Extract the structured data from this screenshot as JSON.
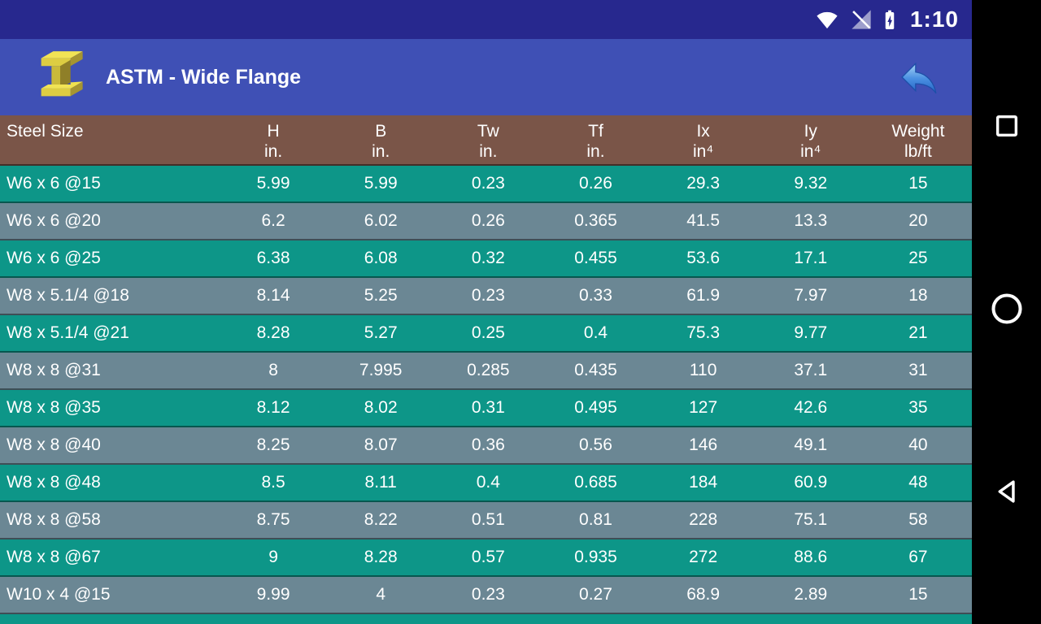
{
  "status_bar": {
    "time": "1:10"
  },
  "app_bar": {
    "title": "ASTM - Wide Flange"
  },
  "table": {
    "columns": [
      {
        "label": "Steel Size",
        "unit": ""
      },
      {
        "label": "H",
        "unit": "in."
      },
      {
        "label": "B",
        "unit": "in."
      },
      {
        "label": "Tw",
        "unit": "in."
      },
      {
        "label": "Tf",
        "unit": "in."
      },
      {
        "label": "Ix",
        "unit": "in⁴"
      },
      {
        "label": "Iy",
        "unit": "in⁴"
      },
      {
        "label": "Weight",
        "unit": "lb/ft"
      }
    ],
    "rows": [
      [
        "W6 x 6 @15",
        "5.99",
        "5.99",
        "0.23",
        "0.26",
        "29.3",
        "9.32",
        "15"
      ],
      [
        "W6 x 6 @20",
        "6.2",
        "6.02",
        "0.26",
        "0.365",
        "41.5",
        "13.3",
        "20"
      ],
      [
        "W6 x 6 @25",
        "6.38",
        "6.08",
        "0.32",
        "0.455",
        "53.6",
        "17.1",
        "25"
      ],
      [
        "W8 x 5.1/4 @18",
        "8.14",
        "5.25",
        "0.23",
        "0.33",
        "61.9",
        "7.97",
        "18"
      ],
      [
        "W8 x 5.1/4 @21",
        "8.28",
        "5.27",
        "0.25",
        "0.4",
        "75.3",
        "9.77",
        "21"
      ],
      [
        "W8 x 8 @31",
        "8",
        "7.995",
        "0.285",
        "0.435",
        "110",
        "37.1",
        "31"
      ],
      [
        "W8 x 8 @35",
        "8.12",
        "8.02",
        "0.31",
        "0.495",
        "127",
        "42.6",
        "35"
      ],
      [
        "W8 x 8 @40",
        "8.25",
        "8.07",
        "0.36",
        "0.56",
        "146",
        "49.1",
        "40"
      ],
      [
        "W8 x 8 @48",
        "8.5",
        "8.11",
        "0.4",
        "0.685",
        "184",
        "60.9",
        "48"
      ],
      [
        "W8 x 8 @58",
        "8.75",
        "8.22",
        "0.51",
        "0.81",
        "228",
        "75.1",
        "58"
      ],
      [
        "W8 x 8 @67",
        "9",
        "8.28",
        "0.57",
        "0.935",
        "272",
        "88.6",
        "67"
      ],
      [
        "W10 x 4 @15",
        "9.99",
        "4",
        "0.23",
        "0.27",
        "68.9",
        "2.89",
        "15"
      ],
      [
        "",
        "",
        "",
        "",
        "",
        "",
        "",
        ""
      ]
    ]
  },
  "icons": [
    "wifi-icon",
    "no-signal-icon",
    "battery-charging-icon",
    "ibeam-app-icon",
    "undo-back-icon",
    "recents-square-icon",
    "home-circle-icon",
    "back-triangle-icon"
  ],
  "colors": {
    "statusbar": "#27288e",
    "appbar": "#3f50b5",
    "header-brown": "#7a5548",
    "row-teal": "#0d9688",
    "row-gray": "#6b8794",
    "navbar": "#000000",
    "accent-arrow": "#4a90e2",
    "beam-yellow": "#e6d84a"
  }
}
